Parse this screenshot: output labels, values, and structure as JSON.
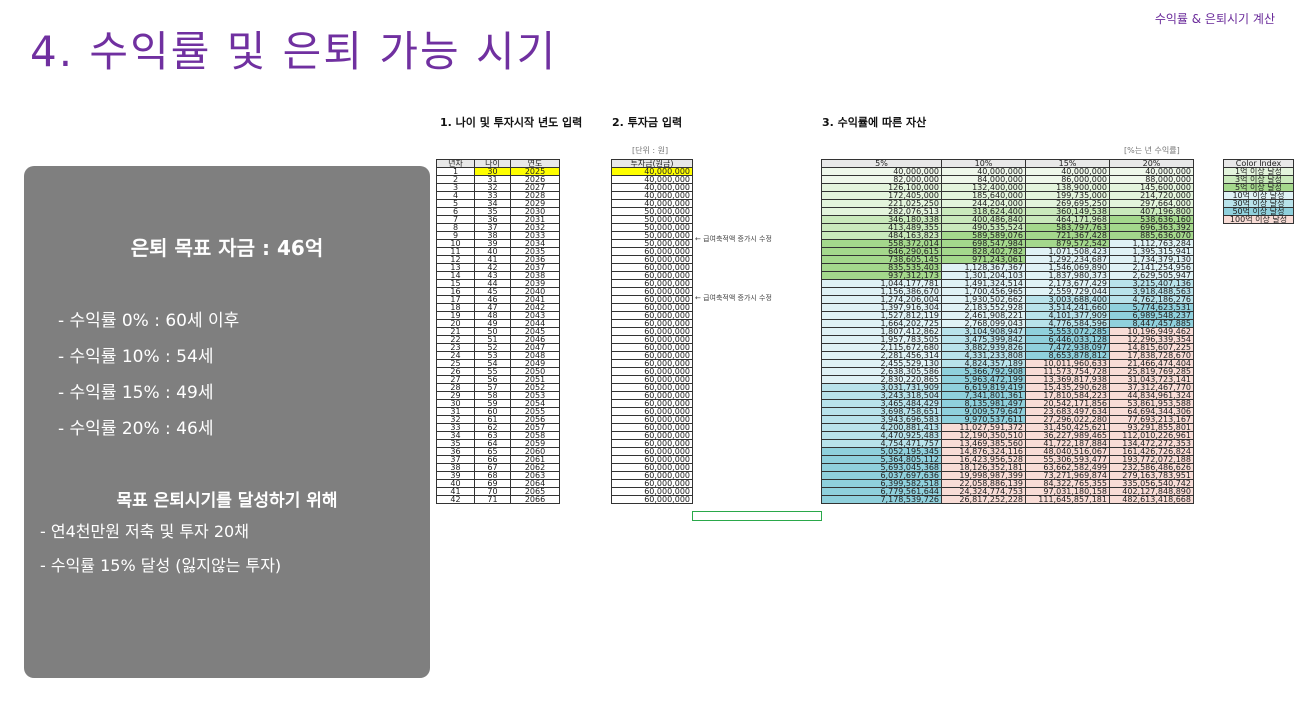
{
  "header": {
    "top_right": "수익률 & 은퇴시기 계산",
    "title": "4. 수익률 및 은퇴 가능 시기"
  },
  "panel": {
    "goal": "은퇴 목표 자금 : 46억",
    "rates": [
      "- 수익률   0% : 60세 이후",
      "- 수익률 10% : 54세",
      "- 수익률 15% : 49세",
      "- 수익률 20% : 46세"
    ],
    "strategy_title": "목표 은퇴시기를 달성하기 위해",
    "strategy": [
      "- 연4천만원 저축 및 투자 20채",
      "- 수익률 15% 달성 (잃지않는 투자)"
    ]
  },
  "sections": {
    "s1": "1. 나이 및 투자시작 년도 입력",
    "s2": "2. 투자금 입력",
    "s3": "3. 수익률에 따른 자산",
    "unit": "[단위 : 원]",
    "rate_note": "[%는 년 수익률]"
  },
  "age_table": {
    "headers": [
      "년차",
      "나이",
      "연도"
    ],
    "years": [
      "1",
      "2",
      "3",
      "4",
      "5",
      "6",
      "7",
      "8",
      "9",
      "10",
      "11",
      "12",
      "13",
      "14",
      "15",
      "16",
      "17",
      "18",
      "19",
      "20",
      "21",
      "22",
      "23",
      "24",
      "25",
      "26",
      "27",
      "28",
      "29",
      "30",
      "31",
      "32",
      "33",
      "34",
      "35",
      "36",
      "37",
      "38",
      "39",
      "40",
      "41",
      "42"
    ],
    "ages": [
      "30",
      "31",
      "32",
      "33",
      "34",
      "35",
      "36",
      "37",
      "38",
      "39",
      "40",
      "41",
      "42",
      "43",
      "44",
      "45",
      "46",
      "47",
      "48",
      "49",
      "50",
      "51",
      "52",
      "53",
      "54",
      "55",
      "56",
      "57",
      "58",
      "59",
      "60",
      "61",
      "62",
      "63",
      "64",
      "65",
      "66",
      "67",
      "68",
      "69",
      "70",
      "71"
    ],
    "calendar": [
      "2025",
      "2026",
      "2027",
      "2028",
      "2029",
      "2030",
      "2031",
      "2032",
      "2033",
      "2034",
      "2035",
      "2036",
      "2037",
      "2038",
      "2039",
      "2040",
      "2041",
      "2042",
      "2043",
      "2044",
      "2045",
      "2046",
      "2047",
      "2048",
      "2049",
      "2050",
      "2051",
      "2052",
      "2053",
      "2054",
      "2055",
      "2056",
      "2057",
      "2058",
      "2059",
      "2060",
      "2061",
      "2062",
      "2063",
      "2064",
      "2065",
      "2066"
    ]
  },
  "invest_table": {
    "header": "투자금(원금)",
    "values": [
      "40,000,000",
      "40,000,000",
      "40,000,000",
      "40,000,000",
      "40,000,000",
      "50,000,000",
      "50,000,000",
      "50,000,000",
      "50,000,000",
      "50,000,000",
      "60,000,000",
      "60,000,000",
      "60,000,000",
      "60,000,000",
      "60,000,000",
      "60,000,000",
      "60,000,000",
      "60,000,000",
      "60,000,000",
      "60,000,000",
      "60,000,000",
      "60,000,000",
      "60,000,000",
      "60,000,000",
      "60,000,000",
      "60,000,000",
      "60,000,000",
      "60,000,000",
      "60,000,000",
      "60,000,000",
      "60,000,000",
      "60,000,000",
      "60,000,000",
      "60,000,000",
      "60,000,000",
      "60,000,000",
      "60,000,000",
      "60,000,000",
      "60,000,000",
      "60,000,000",
      "60,000,000",
      "60,000,000"
    ],
    "note": "← 급여축적액 증가시 수정"
  },
  "returns_table": {
    "headers": [
      "5%",
      "10%",
      "15%",
      "20%"
    ],
    "col5": [
      "40,000,000",
      "82,000,000",
      "126,100,000",
      "172,405,000",
      "221,025,250",
      "282,076,513",
      "346,180,338",
      "413,489,355",
      "484,163,823",
      "558,372,014",
      "646,290,615",
      "738,605,145",
      "835,535,403",
      "937,312,173",
      "1,044,177,781",
      "1,156,386,670",
      "1,274,206,004",
      "1,397,916,304",
      "1,527,812,119",
      "1,664,202,725",
      "1,807,412,862",
      "1,957,783,505",
      "2,115,672,680",
      "2,281,456,314",
      "2,455,529,130",
      "2,638,305,586",
      "2,830,220,865",
      "3,031,731,909",
      "3,243,318,504",
      "3,465,484,429",
      "3,698,758,651",
      "3,943,696,583",
      "4,200,881,413",
      "4,470,925,483",
      "4,754,471,757",
      "5,052,195,345",
      "5,364,805,112",
      "5,693,045,368",
      "6,037,697,636",
      "6,399,582,518",
      "6,779,561,644",
      "7,178,539,726"
    ],
    "col10": [
      "40,000,000",
      "84,000,000",
      "132,400,000",
      "185,640,000",
      "244,204,000",
      "318,624,400",
      "400,486,840",
      "490,535,524",
      "589,589,076",
      "698,547,984",
      "828,402,782",
      "971,243,061",
      "1,128,367,367",
      "1,301,204,103",
      "1,491,324,514",
      "1,700,456,965",
      "1,930,502,662",
      "2,183,552,928",
      "2,461,908,221",
      "2,768,099,043",
      "3,104,908,947",
      "3,475,399,842",
      "3,882,939,826",
      "4,331,233,808",
      "4,824,357,189",
      "5,366,792,908",
      "5,963,472,199",
      "6,619,819,419",
      "7,341,801,361",
      "8,135,981,497",
      "9,009,579,647",
      "9,970,537,611",
      "11,027,591,372",
      "12,190,350,510",
      "13,469,385,560",
      "14,876,324,116",
      "16,423,956,528",
      "18,126,352,181",
      "19,998,987,399",
      "22,058,886,139",
      "24,324,774,753",
      "26,817,252,228"
    ],
    "col15": [
      "40,000,000",
      "86,000,000",
      "138,900,000",
      "199,735,000",
      "269,695,250",
      "360,149,538",
      "464,171,968",
      "583,797,763",
      "721,367,428",
      "879,572,542",
      "1,071,508,423",
      "1,292,234,687",
      "1,546,069,890",
      "1,837,980,373",
      "2,173,677,429",
      "2,559,729,044",
      "3,003,688,400",
      "3,514,241,660",
      "4,101,377,909",
      "4,776,584,596",
      "5,553,072,285",
      "6,446,033,128",
      "7,472,938,097",
      "8,653,878,812",
      "10,011,960,633",
      "11,573,754,728",
      "13,369,817,938",
      "15,435,290,628",
      "17,810,584,223",
      "20,542,171,856",
      "23,683,497,634",
      "27,296,022,280",
      "31,450,425,621",
      "36,227,989,465",
      "41,722,187,884",
      "48,040,516,067",
      "55,306,593,477",
      "63,662,582,499",
      "73,271,969,874",
      "84,322,765,355",
      "97,031,180,158",
      "111,645,857,181"
    ],
    "col20": [
      "40,000,000",
      "88,000,000",
      "145,600,000",
      "214,720,000",
      "297,664,000",
      "407,196,800",
      "538,636,160",
      "696,363,392",
      "885,636,070",
      "1,112,763,284",
      "1,395,315,941",
      "1,734,379,130",
      "2,141,254,956",
      "2,629,505,947",
      "3,215,407,136",
      "3,918,488,563",
      "4,762,186,276",
      "5,774,623,531",
      "6,989,548,237",
      "8,447,457,885",
      "10,196,949,462",
      "12,296,339,354",
      "14,815,607,225",
      "17,838,728,670",
      "21,466,474,404",
      "25,819,769,285",
      "31,043,723,141",
      "37,312,467,770",
      "44,834,961,324",
      "53,861,953,588",
      "64,694,344,306",
      "77,693,213,167",
      "93,291,855,801",
      "112,010,226,961",
      "134,472,272,353",
      "161,426,726,824",
      "193,772,072,188",
      "232,586,486,626",
      "279,163,783,951",
      "335,056,540,742",
      "402,127,848,890",
      "482,613,418,668"
    ]
  },
  "legend": {
    "header": "Color Index",
    "items": [
      "1억 이상 달성",
      "3억 이상 달성",
      "5억 이상 달성",
      "10억 이상 달성",
      "30억 이상 달성",
      "50억 이상 달성",
      "100억 이상 달성"
    ],
    "colors": [
      "#e3f4dc",
      "#c9e9bb",
      "#a4d88c",
      "#e0f2f5",
      "#b8e2ea",
      "#8fd0dc",
      "#f8dcd6"
    ]
  },
  "colors": {
    "title": "#7030a0",
    "panel": "#7f7f7f",
    "highlight": "#ffff00",
    "base": "#eef7ea"
  }
}
